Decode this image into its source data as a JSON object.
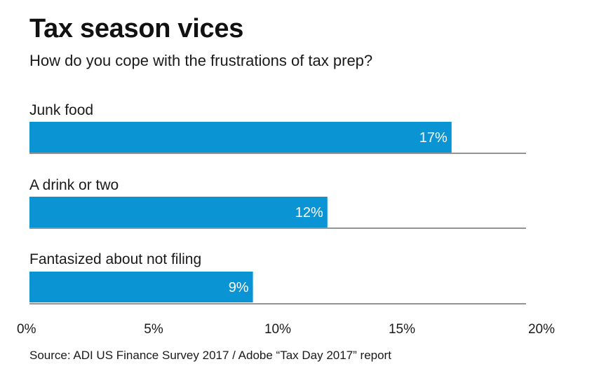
{
  "header": {
    "title": "Tax season vices",
    "subtitle": "How do you cope with the frustrations of tax prep?"
  },
  "footer": {
    "source": "Source: ADI US Finance Survey 2017 / Adobe “Tax Day 2017” report"
  },
  "colors": {
    "bar": "#0a94d3",
    "bar_label": "#ffffff",
    "baseline": "#555555",
    "text": "#1a1a1a"
  },
  "chart_data": {
    "type": "bar",
    "orientation": "horizontal",
    "categories": [
      "Junk food",
      "A drink or two",
      "Fantasized about not filing"
    ],
    "values": [
      17,
      12,
      9
    ],
    "value_labels": [
      "17%",
      "12%",
      "9%"
    ],
    "xlim": [
      0,
      20
    ],
    "x_ticks": [
      0,
      5,
      10,
      15,
      20
    ],
    "x_tick_labels": [
      "0%",
      "5%",
      "10%",
      "15%",
      "20%"
    ],
    "grid": false,
    "legend": "none"
  }
}
